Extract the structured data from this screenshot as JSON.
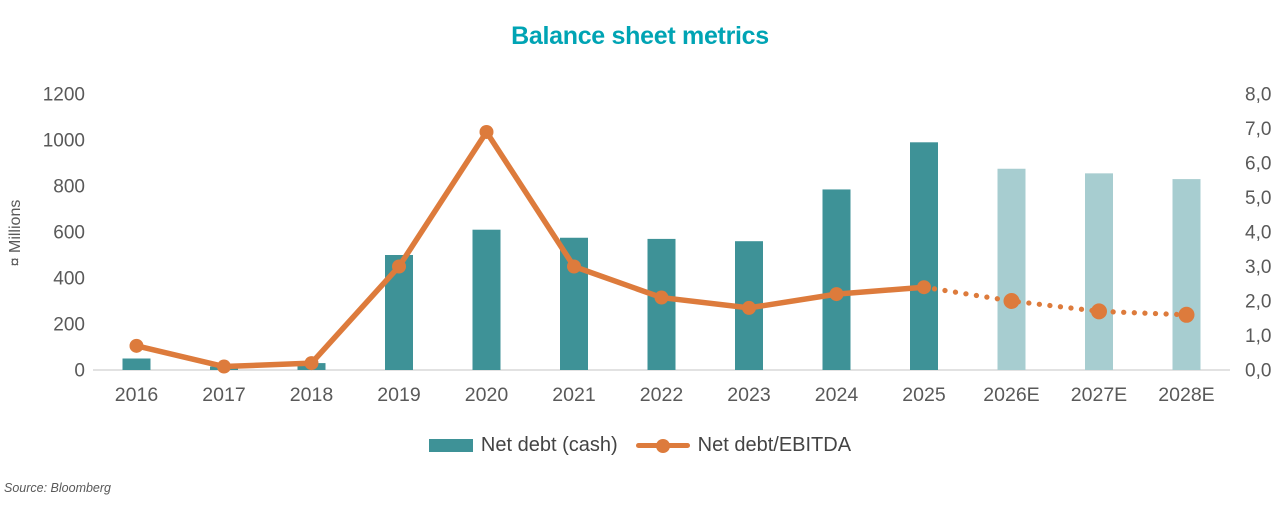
{
  "chart_data": {
    "type": "combo-bar-line",
    "title": "Balance sheet metrics",
    "categories": [
      "2016",
      "2017",
      "2018",
      "2019",
      "2020",
      "2021",
      "2022",
      "2023",
      "2024",
      "2025",
      "2026E",
      "2027E",
      "2028E"
    ],
    "series": [
      {
        "name": "Net debt (cash)",
        "type": "bar",
        "axis": "left",
        "values": [
          50,
          15,
          30,
          500,
          610,
          575,
          570,
          560,
          785,
          990,
          875,
          855,
          830
        ],
        "estimate_start_index": 10
      },
      {
        "name": "Net debt/EBITDA",
        "type": "line",
        "axis": "right",
        "values": [
          0.7,
          0.1,
          0.2,
          3.0,
          6.9,
          3.0,
          2.1,
          1.8,
          2.2,
          2.4,
          2.0,
          1.7,
          1.6
        ],
        "dotted_forecast_start_index": 9
      }
    ],
    "left_axis": {
      "title": "¤ Millions",
      "min": 0,
      "max": 1200,
      "step": 200,
      "tick_labels": [
        "0",
        "200",
        "400",
        "600",
        "800",
        "1000",
        "1200"
      ]
    },
    "right_axis": {
      "min": 0,
      "max": 8,
      "step": 1,
      "tick_labels": [
        "0,0",
        "1,0",
        "2,0",
        "3,0",
        "4,0",
        "5,0",
        "6,0",
        "7,0",
        "8,0"
      ]
    },
    "grid": false,
    "legend_position": "bottom",
    "source": "Source: Bloomberg",
    "colors": {
      "bar": "#3E9297",
      "bar_estimate": "#A7CDD0",
      "line": "#DD7B3C",
      "title": "#00A4B4",
      "axis_text": "#595959",
      "axis_line": "#D9D9D9"
    }
  }
}
